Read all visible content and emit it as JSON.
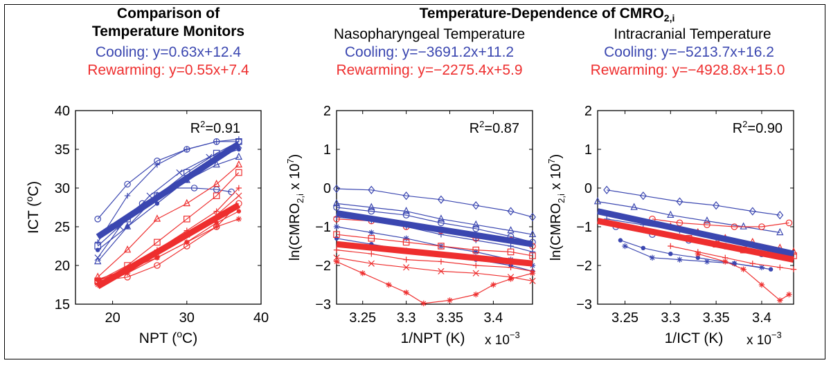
{
  "colors": {
    "cooling": "#3a46b0",
    "rewarming": "#ee2e2e"
  },
  "group_title_prefix": "Temperature-Dependence of CMRO",
  "group_title_sub": "2,i",
  "chart_data": [
    {
      "type": "line",
      "title_line1": "Comparison of",
      "title_line2": "Temperature Monitors",
      "eq_cooling": "Cooling: y=0.63x+12.4",
      "eq_rewarming": "Rewarming: y=0.55x+7.4",
      "r2_label": "R",
      "r2_value": "=0.91",
      "xlabel_main": "NPT (",
      "xlabel_unit": "C)",
      "ylabel_main": "ICT (",
      "ylabel_unit": "C)",
      "xlim": [
        15,
        40
      ],
      "ylim": [
        15,
        40
      ],
      "xticks": [
        20,
        30,
        40
      ],
      "yticks": [
        15,
        20,
        25,
        30,
        35,
        40
      ],
      "xtick_labels": [
        "20",
        "30",
        "40"
      ],
      "ytick_labels": [
        "15",
        "20",
        "25",
        "30",
        "35",
        "40"
      ],
      "fits": [
        {
          "group": "cooling",
          "x": [
            18,
            37
          ],
          "y": [
            23.7,
            35.7
          ]
        },
        {
          "group": "rewarming",
          "x": [
            18,
            37
          ],
          "y": [
            17.3,
            27.8
          ]
        }
      ],
      "series": [
        {
          "group": "cooling",
          "marker": "o",
          "x": [
            18,
            22,
            26,
            30,
            34,
            37
          ],
          "y": [
            26,
            30.5,
            33.5,
            35,
            36,
            36
          ]
        },
        {
          "group": "cooling",
          "marker": "+",
          "x": [
            18,
            22,
            26,
            30,
            34,
            37
          ],
          "y": [
            23,
            29,
            33,
            35,
            36,
            36.3
          ]
        },
        {
          "group": "cooling",
          "marker": "x",
          "x": [
            18,
            21,
            25,
            29,
            33,
            37
          ],
          "y": [
            21,
            25,
            29,
            32,
            34,
            35.5
          ]
        },
        {
          "group": "cooling",
          "marker": "^",
          "x": [
            18,
            22,
            26,
            30,
            34,
            37
          ],
          "y": [
            20.5,
            25,
            29,
            31,
            33,
            34
          ]
        },
        {
          "group": "cooling",
          "marker": "s",
          "x": [
            18,
            22,
            26,
            30,
            34,
            37
          ],
          "y": [
            22.5,
            26,
            29,
            32,
            34.5,
            36
          ]
        },
        {
          "group": "cooling",
          "marker": "o",
          "x": [
            20,
            24,
            28,
            31,
            34,
            36
          ],
          "y": [
            25,
            28,
            30,
            30,
            29.8,
            29.5
          ]
        },
        {
          "group": "cooling",
          "marker": ".",
          "x": [
            18,
            22,
            26,
            30,
            34,
            37
          ],
          "y": [
            22,
            25,
            28,
            31,
            34,
            35
          ]
        },
        {
          "group": "rewarming",
          "marker": "^",
          "x": [
            18,
            22,
            26,
            30,
            34,
            37
          ],
          "y": [
            18.5,
            22,
            26,
            28,
            30.5,
            33
          ]
        },
        {
          "group": "rewarming",
          "marker": "s",
          "x": [
            18,
            22,
            26,
            30,
            34,
            37
          ],
          "y": [
            18,
            20,
            23,
            26,
            29,
            32
          ]
        },
        {
          "group": "rewarming",
          "marker": "o",
          "x": [
            18,
            22,
            26,
            30,
            34,
            37
          ],
          "y": [
            18,
            18.5,
            20,
            22.5,
            25,
            28
          ]
        },
        {
          "group": "rewarming",
          "marker": "*",
          "x": [
            18,
            22,
            26,
            30,
            34,
            37
          ],
          "y": [
            17.5,
            19,
            21,
            23,
            25,
            26
          ]
        },
        {
          "group": "rewarming",
          "marker": "+",
          "x": [
            18,
            22,
            26,
            30,
            34,
            37
          ],
          "y": [
            18,
            19.5,
            22,
            24.5,
            27,
            30
          ]
        },
        {
          "group": "rewarming",
          "marker": "x",
          "x": [
            18,
            22,
            26,
            30,
            34,
            37
          ],
          "y": [
            17.8,
            19,
            21.5,
            24,
            26.5,
            29
          ]
        },
        {
          "group": "rewarming",
          "marker": ".",
          "x": [
            18,
            22,
            26,
            30,
            34,
            37
          ],
          "y": [
            18.2,
            19.5,
            21,
            23,
            25.5,
            27
          ]
        }
      ]
    },
    {
      "type": "line",
      "subtitle": "Nasopharyngeal Temperature",
      "eq_cooling": "Cooling: y=−3691.2x+11.2",
      "eq_rewarming": "Rewarming: y=−2275.4x+5.9",
      "r2_label": "R",
      "r2_value": "=0.87",
      "xlabel": "1/NPT (K)",
      "x_multiplier_base": "x 10",
      "x_multiplier_exp": "−3",
      "ylabel_main": "ln(CMRO",
      "ylabel_sub": "2,i",
      "ylabel_tail": " x 10",
      "ylabel_exp": "7",
      "ylabel_close": ")",
      "xlim": [
        3.22,
        3.445
      ],
      "ylim": [
        -3,
        2
      ],
      "xticks": [
        3.25,
        3.3,
        3.35,
        3.4
      ],
      "yticks": [
        -3,
        -2,
        -1,
        0,
        1,
        2
      ],
      "xtick_labels": [
        "3.25",
        "3.3",
        "3.35",
        "3.4"
      ],
      "ytick_labels": [
        "−3",
        "−2",
        "−1",
        "0",
        "1",
        "2"
      ],
      "fits": [
        {
          "group": "cooling",
          "x": [
            3.22,
            3.445
          ],
          "y": [
            -0.65,
            -1.45
          ]
        },
        {
          "group": "rewarming",
          "x": [
            3.22,
            3.445
          ],
          "y": [
            -1.45,
            -1.95
          ]
        }
      ],
      "series": [
        {
          "group": "cooling",
          "marker": "d",
          "x": [
            3.22,
            3.26,
            3.3,
            3.34,
            3.38,
            3.42,
            3.445
          ],
          "y": [
            -0.02,
            -0.05,
            -0.2,
            -0.3,
            -0.45,
            -0.6,
            -0.75
          ]
        },
        {
          "group": "cooling",
          "marker": "^",
          "x": [
            3.22,
            3.26,
            3.3,
            3.34,
            3.38,
            3.42,
            3.445
          ],
          "y": [
            -0.4,
            -0.5,
            -0.6,
            -0.8,
            -0.95,
            -1.1,
            -1.2
          ]
        },
        {
          "group": "cooling",
          "marker": "o",
          "x": [
            3.22,
            3.26,
            3.3,
            3.34,
            3.38,
            3.42,
            3.445
          ],
          "y": [
            -0.5,
            -0.6,
            -0.7,
            -0.9,
            -1.05,
            -1.25,
            -1.4
          ]
        },
        {
          "group": "cooling",
          "marker": "+",
          "x": [
            3.22,
            3.26,
            3.3,
            3.34,
            3.38,
            3.42,
            3.445
          ],
          "y": [
            -0.75,
            -0.85,
            -1.0,
            -1.2,
            -1.35,
            -1.5,
            -1.65
          ]
        },
        {
          "group": "cooling",
          "marker": "*",
          "x": [
            3.22,
            3.26,
            3.3,
            3.34,
            3.38,
            3.42,
            3.445
          ],
          "y": [
            -1.0,
            -1.15,
            -1.3,
            -1.5,
            -1.65,
            -1.85,
            -2.0
          ]
        },
        {
          "group": "cooling",
          "marker": ".",
          "x": [
            3.22,
            3.26,
            3.3,
            3.34,
            3.38,
            3.42,
            3.445
          ],
          "y": [
            -1.3,
            -1.45,
            -1.6,
            -1.7,
            -1.85,
            -2.0,
            -2.15
          ]
        },
        {
          "group": "rewarming",
          "marker": "o",
          "x": [
            3.22,
            3.26,
            3.3,
            3.34,
            3.38,
            3.42,
            3.445
          ],
          "y": [
            -0.8,
            -0.85,
            -1.0,
            -1.1,
            -1.3,
            -1.35,
            -1.5
          ]
        },
        {
          "group": "rewarming",
          "marker": "s",
          "x": [
            3.22,
            3.26,
            3.3,
            3.34,
            3.38,
            3.42,
            3.445
          ],
          "y": [
            -1.2,
            -1.3,
            -1.4,
            -1.5,
            -1.6,
            -1.65,
            -1.75
          ]
        },
        {
          "group": "rewarming",
          "marker": "+",
          "x": [
            3.22,
            3.26,
            3.3,
            3.34,
            3.38,
            3.42,
            3.445
          ],
          "y": [
            -1.6,
            -1.7,
            -1.85,
            -1.9,
            -2.0,
            -2.05,
            -2.15
          ]
        },
        {
          "group": "rewarming",
          "marker": "x",
          "x": [
            3.22,
            3.26,
            3.3,
            3.34,
            3.38,
            3.42,
            3.445
          ],
          "y": [
            -1.8,
            -1.95,
            -2.05,
            -2.15,
            -2.2,
            -2.3,
            -2.4
          ]
        },
        {
          "group": "rewarming",
          "marker": "*",
          "x": [
            3.22,
            3.25,
            3.28,
            3.3,
            3.32,
            3.35,
            3.38,
            3.4,
            3.42,
            3.445
          ],
          "y": [
            -1.9,
            -2.2,
            -2.5,
            -2.7,
            -2.98,
            -2.9,
            -2.75,
            -2.5,
            -2.35,
            -2.2
          ]
        }
      ]
    },
    {
      "type": "line",
      "subtitle": "Intracranial Temperature",
      "eq_cooling": "Cooling: y=−5213.7x+16.2",
      "eq_rewarming": "Rewarming: y=−4928.8x+15.0",
      "r2_label": "R",
      "r2_value": "=0.90",
      "xlabel": "1/ICT (K)",
      "x_multiplier_base": "x 10",
      "x_multiplier_exp": "−3",
      "ylabel_main": "ln(CMRO",
      "ylabel_sub": "2,i",
      "ylabel_tail": " x 10",
      "ylabel_exp": "7",
      "ylabel_close": ")",
      "xlim": [
        3.22,
        3.435
      ],
      "ylim": [
        -3,
        2
      ],
      "xticks": [
        3.25,
        3.3,
        3.35,
        3.4
      ],
      "yticks": [
        -3,
        -2,
        -1,
        0,
        1,
        2
      ],
      "xtick_labels": [
        "3.25",
        "3.3",
        "3.35",
        "3.4"
      ],
      "ytick_labels": [
        "−3",
        "−2",
        "−1",
        "0",
        "1",
        "2"
      ],
      "fits": [
        {
          "group": "cooling",
          "x": [
            3.22,
            3.435
          ],
          "y": [
            -0.6,
            -1.7
          ]
        },
        {
          "group": "rewarming",
          "x": [
            3.22,
            3.435
          ],
          "y": [
            -0.85,
            -1.85
          ]
        }
      ],
      "series": [
        {
          "group": "cooling",
          "marker": "d",
          "x": [
            3.23,
            3.27,
            3.31,
            3.35,
            3.39,
            3.42
          ],
          "y": [
            -0.05,
            -0.2,
            -0.35,
            -0.45,
            -0.6,
            -0.7
          ]
        },
        {
          "group": "cooling",
          "marker": "^",
          "x": [
            3.22,
            3.26,
            3.3,
            3.34,
            3.38,
            3.42
          ],
          "y": [
            -0.35,
            -0.5,
            -0.7,
            -0.85,
            -1.0,
            -1.15
          ]
        },
        {
          "group": "cooling",
          "marker": "+",
          "x": [
            3.23,
            3.27,
            3.31,
            3.35,
            3.39,
            3.42
          ],
          "y": [
            -0.8,
            -0.95,
            -1.1,
            -1.3,
            -1.45,
            -1.6
          ]
        },
        {
          "group": "cooling",
          "marker": "o",
          "x": [
            3.24,
            3.28,
            3.32,
            3.36,
            3.4
          ],
          "y": [
            -1.0,
            -1.2,
            -1.35,
            -1.5,
            -1.7
          ]
        },
        {
          "group": "cooling",
          "marker": "*",
          "x": [
            3.25,
            3.28,
            3.31,
            3.34,
            3.37,
            3.4
          ],
          "y": [
            -1.5,
            -1.8,
            -1.85,
            -1.9,
            -1.95,
            -2.05
          ]
        },
        {
          "group": "cooling",
          "marker": ".",
          "x": [
            3.245,
            3.27,
            3.3,
            3.33,
            3.37,
            3.41
          ],
          "y": [
            -1.35,
            -1.55,
            -1.7,
            -1.8,
            -1.95,
            -2.1
          ]
        },
        {
          "group": "rewarming",
          "marker": "o",
          "x": [
            3.28,
            3.31,
            3.34,
            3.37,
            3.4,
            3.43
          ],
          "y": [
            -0.8,
            -0.9,
            -0.95,
            -1.0,
            -1.0,
            -0.9
          ]
        },
        {
          "group": "rewarming",
          "marker": "^",
          "x": [
            3.3,
            3.33,
            3.36,
            3.39,
            3.42,
            3.435
          ],
          "y": [
            -1.0,
            -1.15,
            -1.3,
            -1.4,
            -1.55,
            -1.65
          ]
        },
        {
          "group": "rewarming",
          "marker": "s",
          "x": [
            3.32,
            3.35,
            3.38,
            3.41,
            3.435
          ],
          "y": [
            -1.3,
            -1.45,
            -1.6,
            -1.7,
            -1.75
          ]
        },
        {
          "group": "rewarming",
          "marker": "*",
          "x": [
            3.33,
            3.36,
            3.38,
            3.4,
            3.42,
            3.43
          ],
          "y": [
            -1.7,
            -1.9,
            -2.1,
            -2.5,
            -2.9,
            -2.75
          ]
        },
        {
          "group": "rewarming",
          "marker": "+",
          "x": [
            3.3,
            3.33,
            3.36,
            3.39,
            3.42,
            3.435
          ],
          "y": [
            -1.5,
            -1.65,
            -1.8,
            -1.95,
            -2.05,
            -2.1
          ]
        }
      ]
    }
  ]
}
